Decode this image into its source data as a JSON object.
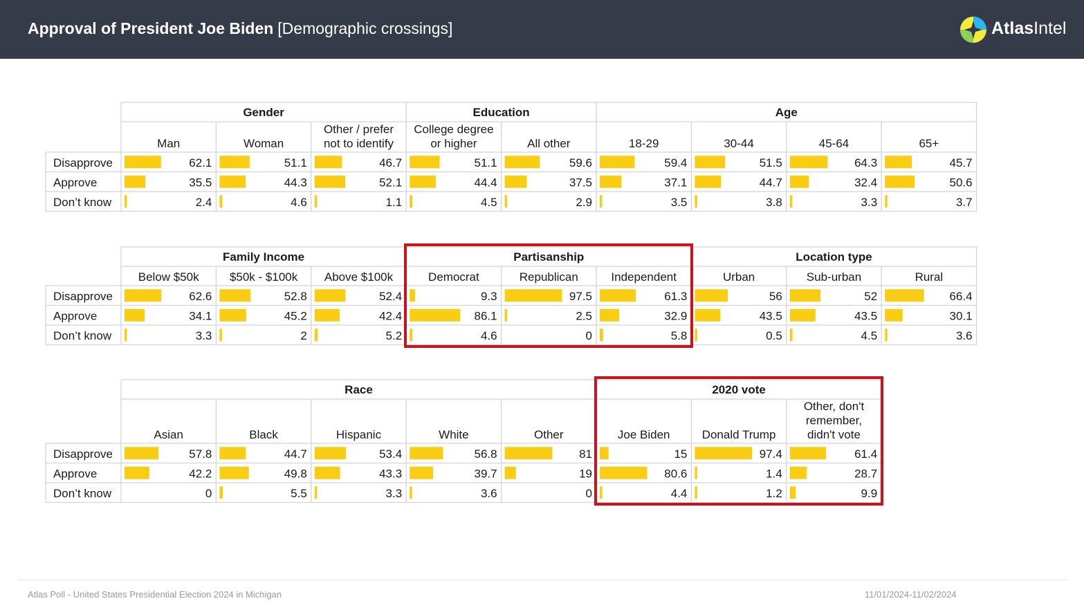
{
  "header": {
    "title": "Approval of President Joe Biden",
    "subtitle": "[Demographic crossings]",
    "brand_bold": "Atlas",
    "brand_light": "Intel",
    "bg_color": "#353b48"
  },
  "footer": {
    "left": "Atlas Poll - United States Presidential Election 2024 in Michigan",
    "right": "11/01/2024-11/02/2024"
  },
  "colors": {
    "bar": "#f9cd14",
    "highlight": "#d0101b",
    "grid": "#d4d4d4"
  },
  "chart_data": [
    {
      "type": "table",
      "rows": [
        "Disapprove",
        "Approve",
        "Don’t know"
      ],
      "groups": [
        {
          "name": "Gender",
          "columns": [
            {
              "label": [
                "Man"
              ],
              "values": [
                62.1,
                35.5,
                2.4
              ]
            },
            {
              "label": [
                "Woman"
              ],
              "values": [
                51.1,
                44.3,
                4.6
              ]
            },
            {
              "label": [
                "Other / prefer",
                "not to identify"
              ],
              "values": [
                46.7,
                52.1,
                1.1
              ]
            }
          ]
        },
        {
          "name": "Education",
          "columns": [
            {
              "label": [
                "College degree",
                "or higher"
              ],
              "values": [
                51.1,
                44.4,
                4.5
              ]
            },
            {
              "label": [
                "All other"
              ],
              "values": [
                59.6,
                37.5,
                2.9
              ]
            }
          ]
        },
        {
          "name": "Age",
          "columns": [
            {
              "label": [
                "18-29"
              ],
              "values": [
                59.4,
                37.1,
                3.5
              ]
            },
            {
              "label": [
                "30-44"
              ],
              "values": [
                51.5,
                44.7,
                3.8
              ]
            },
            {
              "label": [
                "45-64"
              ],
              "values": [
                64.3,
                32.4,
                3.3
              ]
            },
            {
              "label": [
                "65+"
              ],
              "values": [
                45.7,
                50.6,
                3.7
              ]
            }
          ]
        }
      ]
    },
    {
      "type": "table",
      "rows": [
        "Disapprove",
        "Approve",
        "Don’t know"
      ],
      "groups": [
        {
          "name": "Family Income",
          "columns": [
            {
              "label": [
                "Below $50k"
              ],
              "values": [
                62.6,
                34.1,
                3.3
              ]
            },
            {
              "label": [
                "$50k - $100k"
              ],
              "values": [
                52.8,
                45.2,
                2
              ]
            },
            {
              "label": [
                "Above $100k"
              ],
              "values": [
                52.4,
                42.4,
                5.2
              ]
            }
          ]
        },
        {
          "name": "Partisanship",
          "highlight": true,
          "columns": [
            {
              "label": [
                "Democrat"
              ],
              "values": [
                9.3,
                86.1,
                4.6
              ]
            },
            {
              "label": [
                "Republican"
              ],
              "values": [
                97.5,
                2.5,
                0
              ]
            },
            {
              "label": [
                "Independent"
              ],
              "values": [
                61.3,
                32.9,
                5.8
              ]
            }
          ]
        },
        {
          "name": "Location type",
          "columns": [
            {
              "label": [
                "Urban"
              ],
              "values": [
                56,
                43.5,
                0.5
              ]
            },
            {
              "label": [
                "Sub-urban"
              ],
              "values": [
                52,
                43.5,
                4.5
              ]
            },
            {
              "label": [
                "Rural"
              ],
              "values": [
                66.4,
                30.1,
                3.6
              ]
            }
          ]
        }
      ]
    },
    {
      "type": "table",
      "rows": [
        "Disapprove",
        "Approve",
        "Don’t know"
      ],
      "groups": [
        {
          "name": "Race",
          "columns": [
            {
              "label": [
                "Asian"
              ],
              "values": [
                57.8,
                42.2,
                0
              ]
            },
            {
              "label": [
                "Black"
              ],
              "values": [
                44.7,
                49.8,
                5.5
              ]
            },
            {
              "label": [
                "Hispanic"
              ],
              "values": [
                53.4,
                43.3,
                3.3
              ]
            },
            {
              "label": [
                "White"
              ],
              "values": [
                56.8,
                39.7,
                3.6
              ]
            },
            {
              "label": [
                "Other"
              ],
              "values": [
                81,
                19,
                0
              ]
            }
          ]
        },
        {
          "name": "2020 vote",
          "highlight": true,
          "columns": [
            {
              "label": [
                "Joe Biden"
              ],
              "values": [
                15,
                80.6,
                4.4
              ]
            },
            {
              "label": [
                "Donald Trump"
              ],
              "values": [
                97.4,
                1.4,
                1.2
              ]
            },
            {
              "label": [
                "Other, don't",
                "remember,",
                "didn't vote"
              ],
              "values": [
                61.4,
                28.7,
                9.9
              ]
            }
          ]
        }
      ]
    }
  ]
}
